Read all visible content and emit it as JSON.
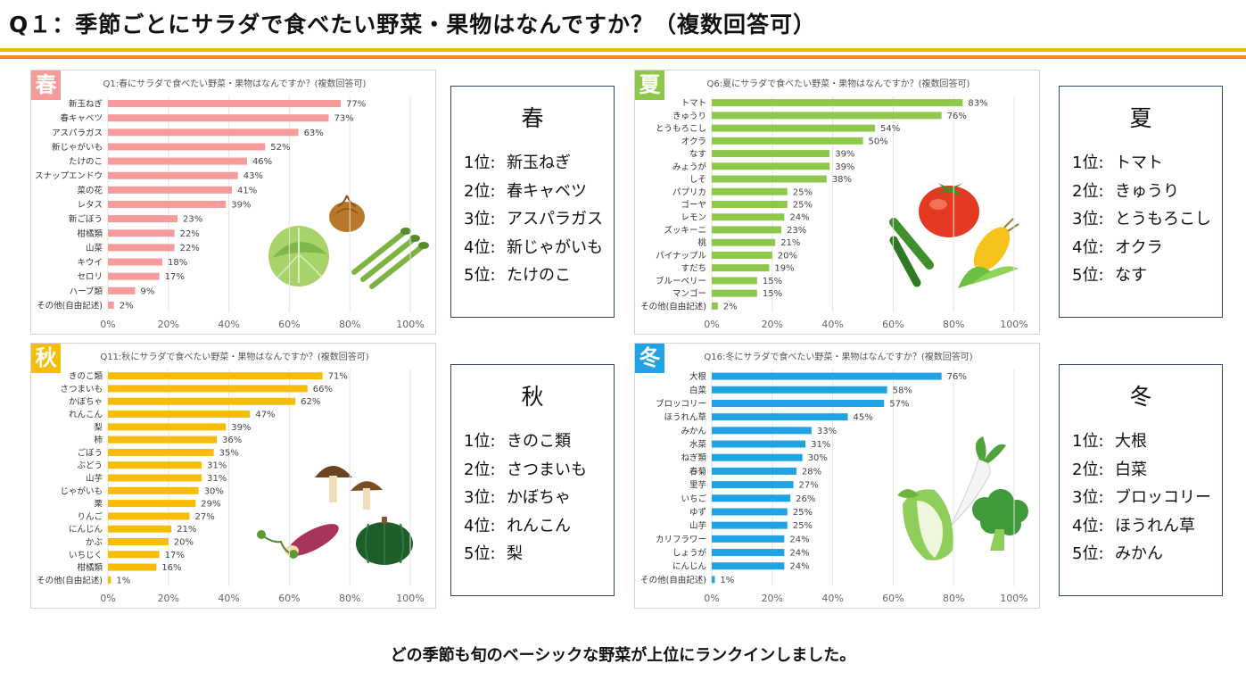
{
  "header": {
    "title": "Q１：季節ごとにサラダで食べたい野菜・果物はなんですか？（複数回答可）"
  },
  "footer": {
    "text": "どの季節も旬のベーシックな野菜が上位にランクインしました。"
  },
  "colors": {
    "spring": "#f79a9a",
    "summer": "#8dc84b",
    "autumn": "#f7bd06",
    "winter": "#1fa3e4",
    "rule_top": "#f5b400",
    "rule_bottom": "#f08a24",
    "rank_border": "#2f4a6b"
  },
  "rank_label_suffix": "位:",
  "chart_data": [
    {
      "type": "bar",
      "orientation": "horizontal",
      "season_badge": "春",
      "title": "Q1:春にサラダで食べたい野菜・果物はなんですか？(複数回答可)",
      "categories": [
        "新玉ねぎ",
        "春キャベツ",
        "アスパラガス",
        "新じゃがいも",
        "たけのこ",
        "スナップエンドウ",
        "菜の花",
        "レタス",
        "新ごぼう",
        "柑橘類",
        "山菜",
        "キウイ",
        "セロリ",
        "ハーブ類",
        "その他(自由記述)"
      ],
      "values": [
        77,
        73,
        63,
        52,
        46,
        43,
        41,
        39,
        23,
        22,
        22,
        18,
        17,
        9,
        2
      ],
      "value_suffix": "%",
      "xlim": [
        0,
        100
      ],
      "xticks": [
        "0%",
        "20%",
        "40%",
        "60%",
        "80%",
        "100%"
      ],
      "grid": true,
      "color": "#f79a9a",
      "illustration": "cabbage-onion-asparagus"
    },
    {
      "type": "bar",
      "orientation": "horizontal",
      "season_badge": "夏",
      "title": "Q6:夏にサラダで食べたい野菜・果物はなんですか？(複数回答可)",
      "categories": [
        "トマト",
        "きゅうり",
        "とうもろこし",
        "オクラ",
        "なす",
        "みょうが",
        "しそ",
        "パプリカ",
        "ゴーヤ",
        "レモン",
        "ズッキーニ",
        "桃",
        "パイナップル",
        "すだち",
        "ブルーベリー",
        "マンゴー",
        "その他(自由記述)"
      ],
      "values": [
        83,
        76,
        54,
        50,
        39,
        39,
        38,
        25,
        25,
        24,
        23,
        21,
        20,
        19,
        15,
        15,
        2
      ],
      "value_suffix": "%",
      "xlim": [
        0,
        100
      ],
      "xticks": [
        "0%",
        "20%",
        "40%",
        "60%",
        "80%",
        "100%"
      ],
      "grid": true,
      "color": "#8dc84b",
      "illustration": "tomato-cucumber-corn"
    },
    {
      "type": "bar",
      "orientation": "horizontal",
      "season_badge": "秋",
      "title": "Q11:秋にサラダで食べたい野菜・果物はなんですか？(複数回答可)",
      "categories": [
        "きのこ類",
        "さつまいも",
        "かぼちゃ",
        "れんこん",
        "梨",
        "柿",
        "ごぼう",
        "ぶどう",
        "山芋",
        "じゃがいも",
        "栗",
        "りんご",
        "にんじん",
        "かぶ",
        "いちじく",
        "柑橘類",
        "その他(自由記述)"
      ],
      "values": [
        71,
        66,
        62,
        47,
        39,
        36,
        35,
        31,
        31,
        30,
        29,
        27,
        21,
        20,
        17,
        16,
        1
      ],
      "value_suffix": "%",
      "xlim": [
        0,
        100
      ],
      "xticks": [
        "0%",
        "20%",
        "40%",
        "60%",
        "80%",
        "100%"
      ],
      "grid": true,
      "color": "#f7bd06",
      "illustration": "mushroom-sweetpotato-pumpkin"
    },
    {
      "type": "bar",
      "orientation": "horizontal",
      "season_badge": "冬",
      "title": "Q16:冬にサラダで食べたい野菜・果物はなんですか？(複数回答可)",
      "categories": [
        "大根",
        "白菜",
        "ブロッコリー",
        "ほうれん草",
        "みかん",
        "水菜",
        "ねぎ類",
        "春菊",
        "里芋",
        "いちご",
        "ゆず",
        "山芋",
        "カリフラワー",
        "しょうが",
        "にんじん",
        "その他(自由記述)"
      ],
      "values": [
        76,
        58,
        57,
        45,
        33,
        31,
        30,
        28,
        27,
        26,
        25,
        25,
        24,
        24,
        24,
        1
      ],
      "value_suffix": "%",
      "xlim": [
        0,
        100
      ],
      "xticks": [
        "0%",
        "20%",
        "40%",
        "60%",
        "80%",
        "100%"
      ],
      "grid": true,
      "color": "#1fa3e4",
      "illustration": "radish-cabbage-broccoli"
    }
  ],
  "rankings": [
    {
      "title": "春",
      "items": [
        {
          "rank": "1",
          "name": "新玉ねぎ"
        },
        {
          "rank": "2",
          "name": "春キャベツ"
        },
        {
          "rank": "3",
          "name": "アスパラガス"
        },
        {
          "rank": "4",
          "name": "新じゃがいも"
        },
        {
          "rank": "5",
          "name": "たけのこ"
        }
      ]
    },
    {
      "title": "夏",
      "items": [
        {
          "rank": "1",
          "name": "トマト"
        },
        {
          "rank": "2",
          "name": "きゅうり"
        },
        {
          "rank": "3",
          "name": "とうもろこし"
        },
        {
          "rank": "4",
          "name": "オクラ"
        },
        {
          "rank": "5",
          "name": "なす"
        }
      ]
    },
    {
      "title": "秋",
      "items": [
        {
          "rank": "1",
          "name": "きのこ類"
        },
        {
          "rank": "2",
          "name": "さつまいも"
        },
        {
          "rank": "3",
          "name": "かぼちゃ"
        },
        {
          "rank": "4",
          "name": "れんこん"
        },
        {
          "rank": "5",
          "name": "梨"
        }
      ]
    },
    {
      "title": "冬",
      "items": [
        {
          "rank": "1",
          "name": "大根"
        },
        {
          "rank": "2",
          "name": "白菜"
        },
        {
          "rank": "3",
          "name": "ブロッコリー"
        },
        {
          "rank": "4",
          "name": "ほうれん草"
        },
        {
          "rank": "5",
          "name": "みかん"
        }
      ]
    }
  ]
}
